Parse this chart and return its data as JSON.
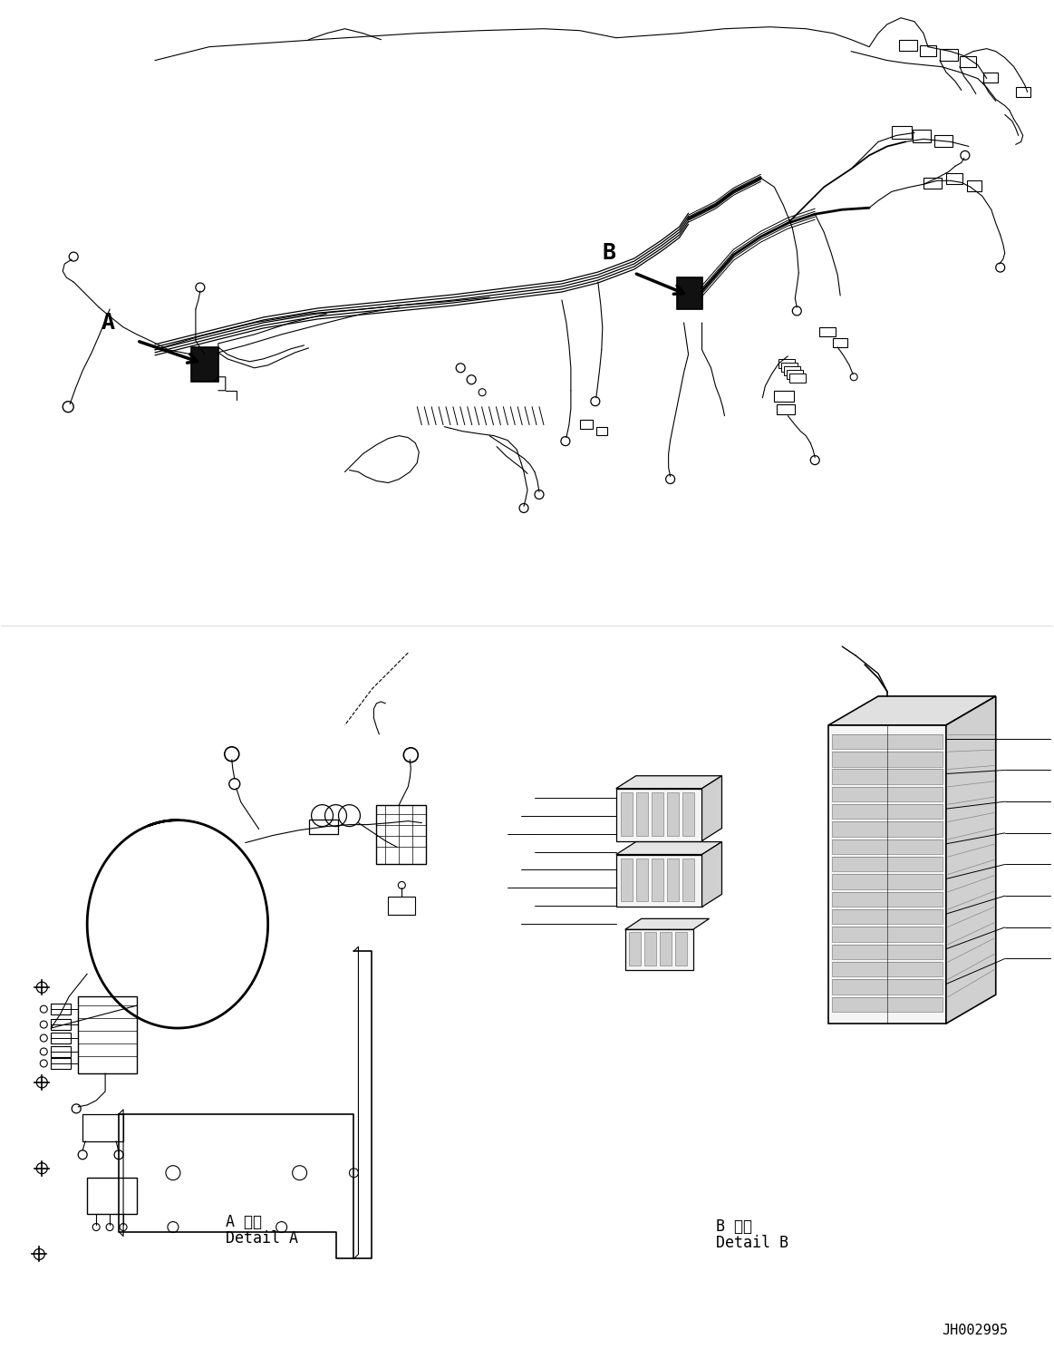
{
  "bg_color": "#ffffff",
  "line_color": "#000000",
  "fig_width": 11.63,
  "fig_height": 14.88,
  "label_A": "A",
  "label_B": "B",
  "detail_A_jp": "A 詳細",
  "detail_A_en": "Detail A",
  "detail_B_jp": "B 詳細",
  "detail_B_en": "Detail B",
  "part_number": "JH002995",
  "font_family": "monospace",
  "lw_main": 1.3,
  "lw_thin": 0.8,
  "lw_thick": 2.0
}
